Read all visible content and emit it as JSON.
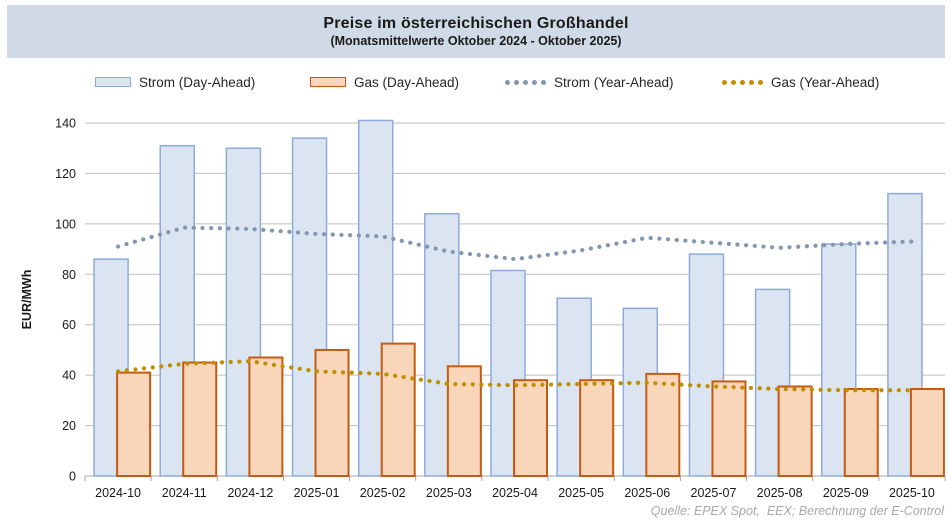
{
  "header": {
    "title": "Preise im österreichischen Großhandel",
    "subtitle": "(Monatsmittelwerte Oktober 2024 - Oktober 2025)",
    "band_color": "#d0d9e6"
  },
  "legend": {
    "items": [
      {
        "label": "Strom (Day-Ahead)",
        "swatch": "bar",
        "fill": "#dbe5f1",
        "border": "#8eaadb"
      },
      {
        "label": "Gas (Day-Ahead)",
        "swatch": "bar",
        "fill": "#f9d6ba",
        "border": "#c55a11"
      },
      {
        "label": "Strom (Year-Ahead)",
        "swatch": "dots",
        "fill": "#8497b0",
        "border": "#8497b0"
      },
      {
        "label": "Gas (Year-Ahead)",
        "swatch": "dots",
        "fill": "#bf8f00",
        "border": "#bf8f00"
      }
    ]
  },
  "source": "Quelle: EPEX Spot,  EEX; Berechnung der E-Control",
  "chart_data": {
    "type": "bar",
    "title": "Preise im österreichischen Großhandel",
    "subtitle": "(Monatsmittelwerte Oktober 2024 - Oktober 2025)",
    "xlabel": "",
    "ylabel": "EUR/MWh",
    "ylim": [
      0,
      140
    ],
    "ytick_step": 20,
    "grid": true,
    "legend_position": "top",
    "categories": [
      "2024-10",
      "2024-11",
      "2024-12",
      "2025-01",
      "2025-02",
      "2025-03",
      "2025-04",
      "2025-05",
      "2025-06",
      "2025-07",
      "2025-08",
      "2025-09",
      "2025-10"
    ],
    "series": [
      {
        "name": "Strom (Day-Ahead)",
        "type": "bar",
        "fill": "#dbe5f1",
        "border": "#8eaadb",
        "values": [
          86,
          131,
          130,
          134,
          141,
          104,
          81.5,
          70.5,
          66.5,
          88,
          74,
          92,
          112
        ]
      },
      {
        "name": "Gas (Day-Ahead)",
        "type": "bar",
        "fill": "#f9d6ba",
        "border": "#c55a11",
        "values": [
          41,
          45,
          47,
          50,
          52.5,
          43.5,
          38,
          38,
          40.5,
          37.5,
          35.5,
          34.5,
          34.5
        ]
      },
      {
        "name": "Strom (Year-Ahead)",
        "type": "dotted_line",
        "color": "#8497b0",
        "values": [
          91,
          98.5,
          98,
          96,
          95,
          89,
          86,
          89.5,
          94.5,
          92.5,
          90.5,
          92,
          93
        ]
      },
      {
        "name": "Gas (Year-Ahead)",
        "type": "dotted_line",
        "color": "#bf8f00",
        "values": [
          41.5,
          44.5,
          45.5,
          41.5,
          40.5,
          36.5,
          36,
          36.5,
          37,
          35.5,
          34.5,
          34,
          34
        ]
      }
    ],
    "colors": {
      "gridline": "#bfbfbf",
      "axis_line": "#a6a6a6",
      "tick_text": "#1a1a1a"
    }
  }
}
